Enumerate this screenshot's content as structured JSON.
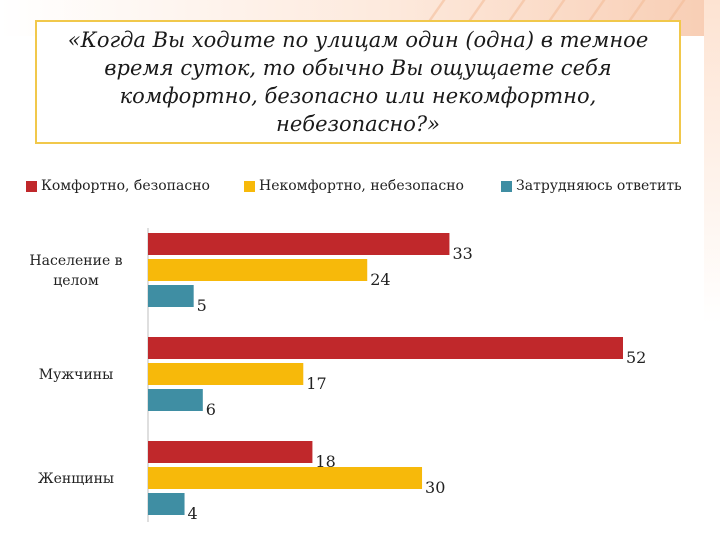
{
  "title": "«Когда Вы ходите по улицам один (одна) в темное время суток, то обычно Вы ощущаете себя комфортно, безопасно или некомфортно, небезопасно?»",
  "colors": {
    "comfortable": "#c0282b",
    "uncomfortable": "#f7b90a",
    "hard_to_say": "#3f8ea3"
  },
  "chart_data": {
    "type": "bar",
    "orientation": "horizontal",
    "title": "«Когда Вы ходите по улицам один (одна) в темное время суток, то обычно Вы ощущаете себя комфортно, безопасно или некомфортно, небезопасно?»",
    "categories": [
      "Население в целом",
      "Мужчины",
      "Женщины"
    ],
    "series": [
      {
        "name": "Комфортно, безопасно",
        "values": [
          33,
          52,
          18
        ]
      },
      {
        "name": "Некомфортно, небезопасно",
        "values": [
          24,
          17,
          30
        ]
      },
      {
        "name": "Затрудняюсь ответить",
        "values": [
          5,
          6,
          4
        ]
      }
    ],
    "xlim": [
      0,
      52
    ],
    "legend_position": "top",
    "grid": false,
    "xlabel": "",
    "ylabel": ""
  }
}
